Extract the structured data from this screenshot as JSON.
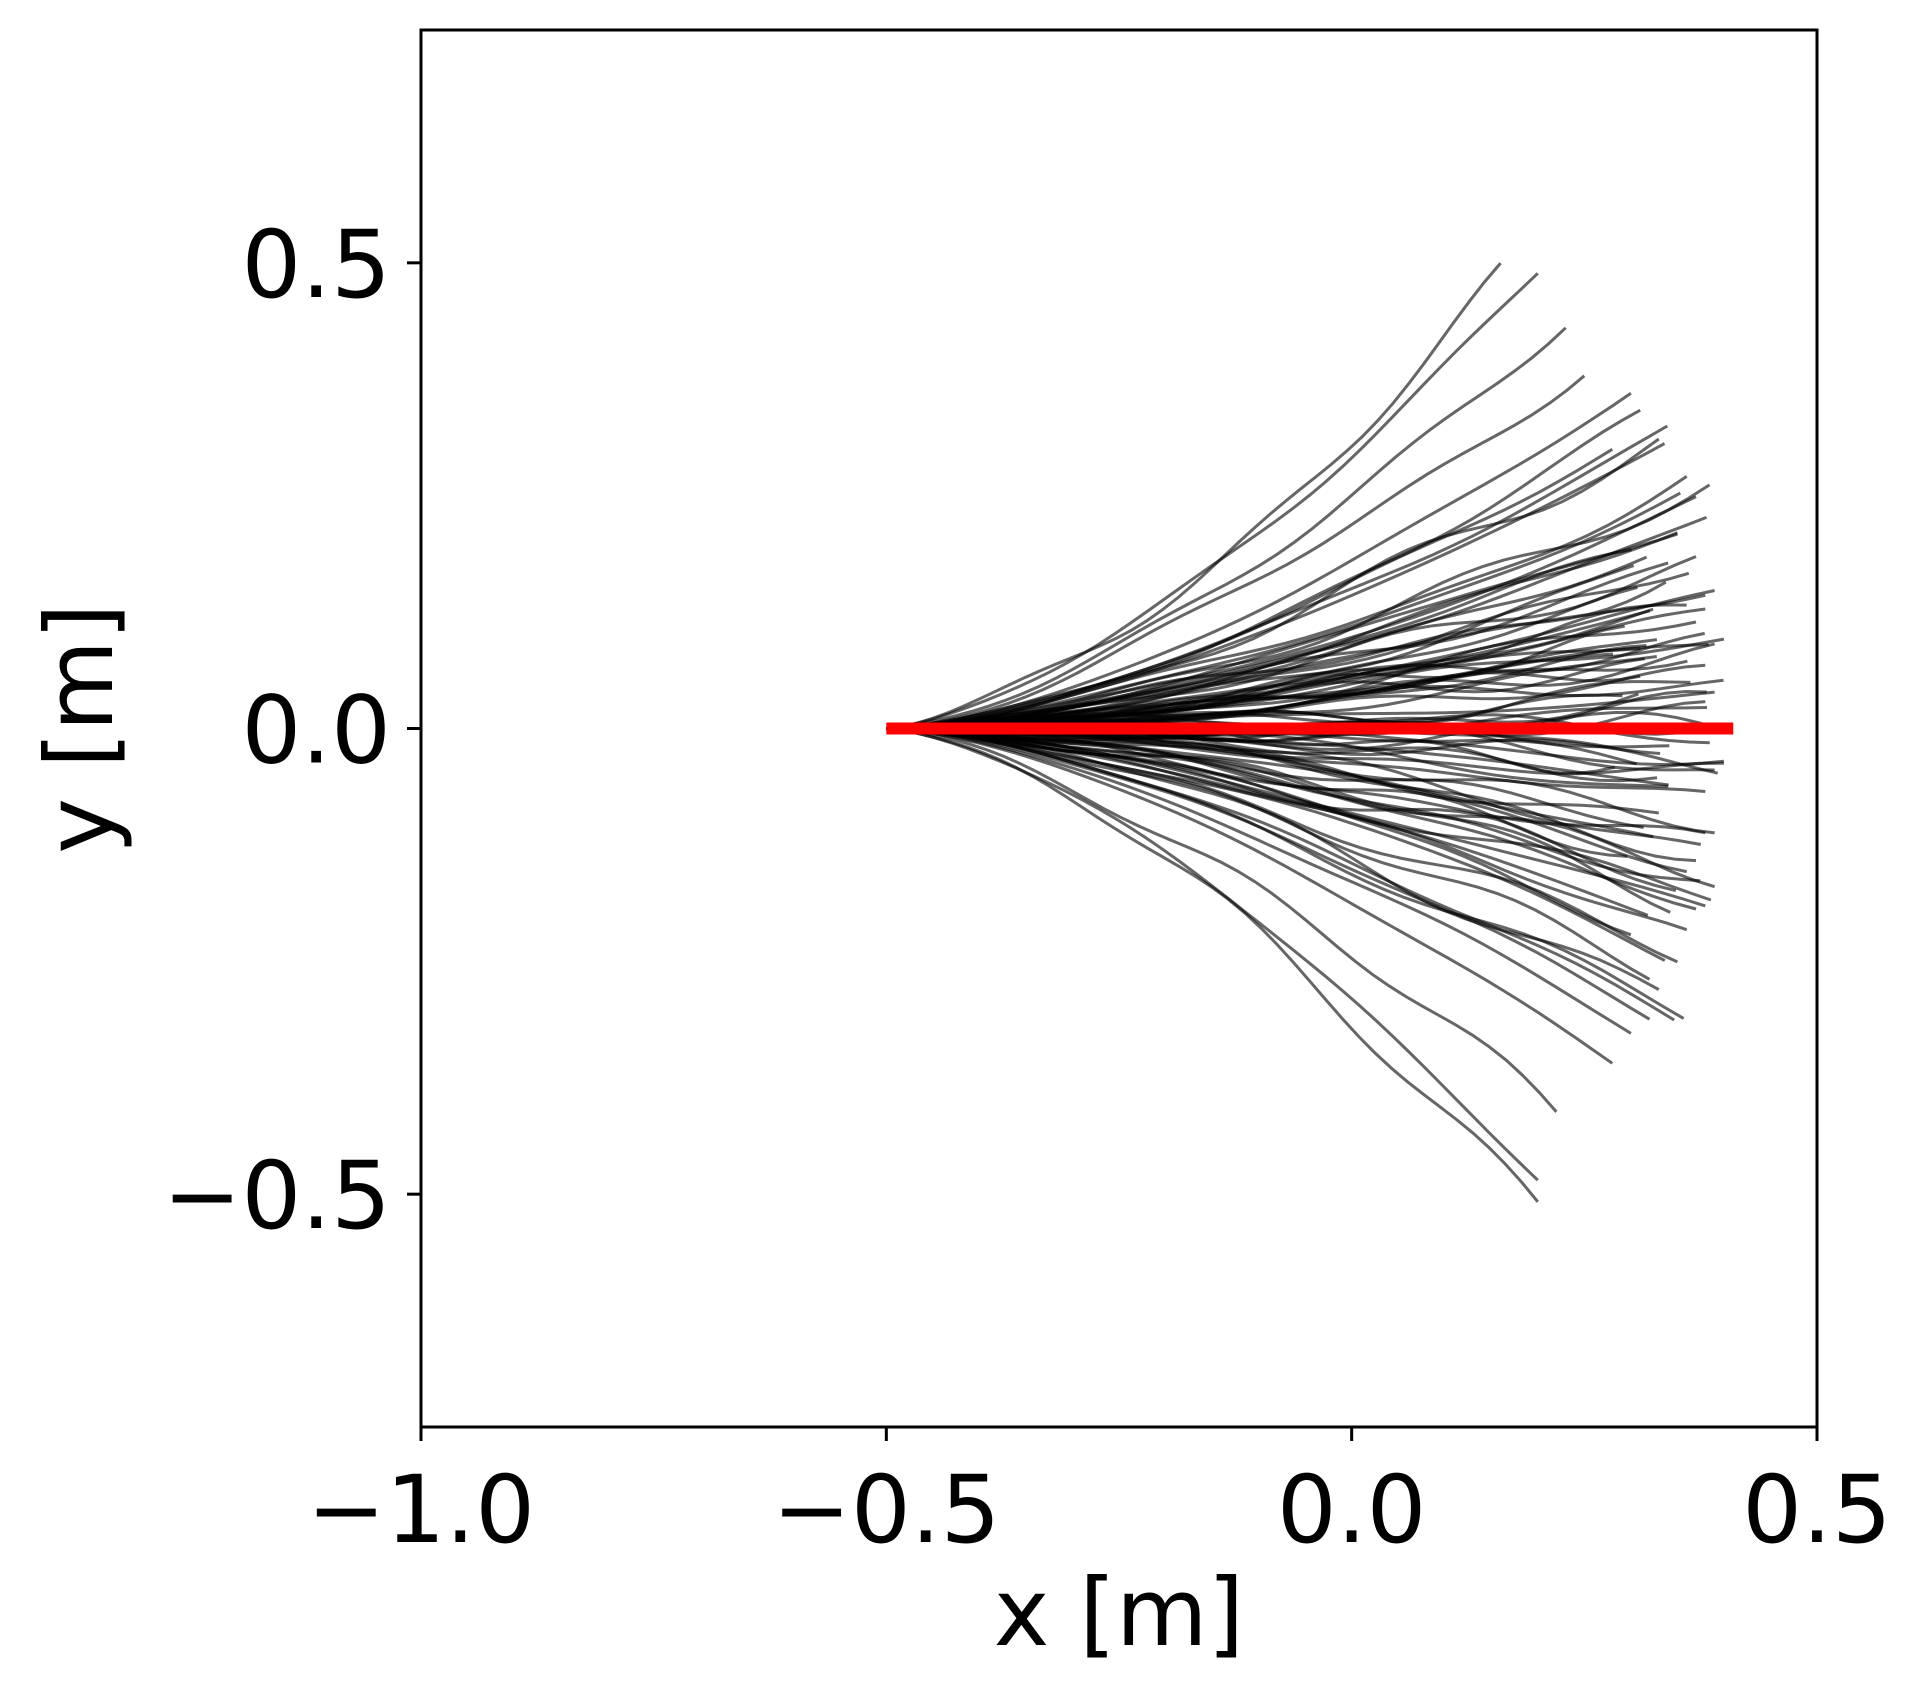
{
  "chart_data": {
    "type": "line",
    "title": "",
    "xlabel": "x [m]",
    "ylabel": "y [m]",
    "xlim": [
      -1.0,
      0.5
    ],
    "ylim": [
      -0.75,
      0.75
    ],
    "xticks": [
      -1.0,
      -0.5,
      0.0,
      0.5
    ],
    "xtick_labels": [
      "−1.0",
      "−0.5",
      "0.0",
      "0.5"
    ],
    "yticks": [
      -0.5,
      0.0,
      0.5
    ],
    "ytick_labels": [
      "−0.5",
      "0.0",
      "0.5"
    ],
    "grid": false,
    "legend": "none",
    "trajectory_start": [
      -0.5,
      0.0
    ],
    "trajectory_color": "#000000",
    "trajectory_opacity": 0.6,
    "trajectories_count": 100,
    "trajectory_endpoints": [
      [
        0.2,
        0.49
      ],
      [
        0.16,
        0.47
      ],
      [
        0.23,
        0.44
      ],
      [
        0.25,
        0.4
      ],
      [
        0.3,
        0.36
      ],
      [
        0.31,
        0.33
      ],
      [
        0.33,
        0.31
      ],
      [
        0.36,
        0.27
      ],
      [
        0.37,
        0.24
      ],
      [
        0.35,
        0.21
      ],
      [
        0.37,
        0.18
      ],
      [
        0.38,
        0.16
      ],
      [
        0.39,
        0.14
      ],
      [
        0.38,
        0.12
      ],
      [
        0.4,
        0.1
      ],
      [
        0.39,
        0.08
      ],
      [
        0.38,
        0.06
      ],
      [
        0.39,
        0.04
      ],
      [
        0.37,
        0.02
      ],
      [
        0.4,
        -0.02
      ],
      [
        0.39,
        -0.04
      ],
      [
        0.4,
        -0.06
      ],
      [
        0.38,
        -0.08
      ],
      [
        0.39,
        -0.1
      ],
      [
        0.37,
        -0.12
      ],
      [
        0.38,
        -0.14
      ],
      [
        0.39,
        -0.16
      ],
      [
        0.37,
        -0.18
      ],
      [
        0.38,
        -0.2
      ],
      [
        0.36,
        -0.22
      ],
      [
        0.35,
        -0.25
      ],
      [
        0.33,
        -0.28
      ],
      [
        0.32,
        -0.31
      ],
      [
        0.3,
        -0.33
      ],
      [
        0.28,
        -0.36
      ],
      [
        0.22,
        -0.42
      ],
      [
        0.2,
        -0.48
      ],
      [
        0.2,
        -0.51
      ],
      [
        0.36,
        0.13
      ],
      [
        0.34,
        -0.05
      ],
      [
        0.31,
        0.08
      ],
      [
        0.33,
        -0.09
      ],
      [
        0.35,
        0.22
      ],
      [
        0.3,
        -0.2
      ],
      [
        0.28,
        0.3
      ],
      [
        0.38,
        0.0
      ],
      [
        0.36,
        -0.13
      ],
      [
        0.34,
        0.18
      ],
      [
        0.32,
        -0.26
      ],
      [
        0.37,
        0.11
      ]
    ],
    "reference_line": {
      "x": [
        -0.5,
        0.41
      ],
      "y": [
        0.0,
        0.0
      ],
      "color": "#ff0000"
    }
  }
}
